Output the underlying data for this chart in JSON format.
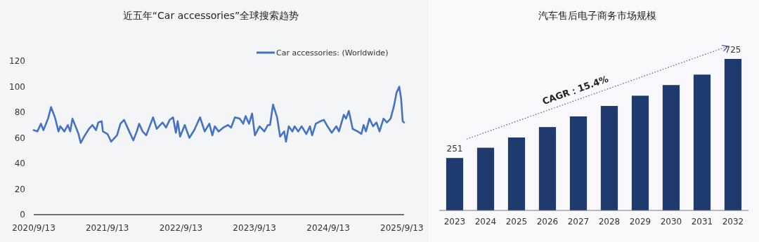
{
  "chart_data": [
    {
      "type": "line",
      "title": "近五年“Car accessories”全球搜索趋势",
      "legend": "top",
      "xlim": [
        "2020-09-13",
        "2025-09-24"
      ],
      "ylim": [
        0,
        120
      ],
      "yticks": [
        0,
        20,
        40,
        60,
        80,
        100,
        120
      ],
      "xticks": [
        {
          "value": "2020-09-13",
          "label": "2020/9/13"
        },
        {
          "value": "2021-09-13",
          "label": "2021/9/13"
        },
        {
          "value": "2022-09-13",
          "label": "2022/9/13"
        },
        {
          "value": "2023-09-13",
          "label": "2023/9/13"
        },
        {
          "value": "2024-09-13",
          "label": "2024/9/13"
        },
        {
          "value": "2025-09-13",
          "label": "2025/9/13"
        }
      ],
      "x": [
        "2020-09-13",
        "2020-10-01",
        "2020-10-19",
        "2020-10-31",
        "2020-11-23",
        "2020-12-08",
        "2020-12-27",
        "2021-01-14",
        "2021-01-23",
        "2021-02-12",
        "2021-03-01",
        "2021-03-13",
        "2021-03-24",
        "2021-04-11",
        "2021-04-23",
        "2021-05-04",
        "2021-05-21",
        "2021-06-14",
        "2021-07-01",
        "2021-07-19",
        "2021-07-30",
        "2021-08-16",
        "2021-08-22",
        "2021-09-14",
        "2021-10-02",
        "2021-10-31",
        "2021-11-17",
        "2021-12-05",
        "2021-12-22",
        "2022-01-20",
        "2022-02-06",
        "2022-02-18",
        "2022-03-07",
        "2022-03-25",
        "2022-04-28",
        "2022-05-16",
        "2022-06-14",
        "2022-07-01",
        "2022-07-19",
        "2022-08-05",
        "2022-08-19",
        "2022-08-28",
        "2022-09-09",
        "2022-10-02",
        "2022-10-25",
        "2022-11-18",
        "2022-12-17",
        "2023-01-09",
        "2023-02-01",
        "2023-02-16",
        "2023-02-28",
        "2023-03-19",
        "2023-04-11",
        "2023-05-05",
        "2023-05-20",
        "2023-06-08",
        "2023-07-02",
        "2023-07-19",
        "2023-07-31",
        "2023-08-17",
        "2023-09-01",
        "2023-09-15",
        "2023-10-08",
        "2023-11-01",
        "2023-11-18",
        "2023-11-29",
        "2023-12-14",
        "2024-01-03",
        "2024-01-18",
        "2024-02-07",
        "2024-02-16",
        "2024-03-01",
        "2024-03-19",
        "2024-03-30",
        "2024-04-17",
        "2024-05-04",
        "2024-05-27",
        "2024-06-14",
        "2024-06-25",
        "2024-07-13",
        "2024-08-05",
        "2024-08-22",
        "2024-09-09",
        "2024-09-30",
        "2024-10-23",
        "2024-11-05",
        "2024-11-29",
        "2024-12-10",
        "2024-12-24",
        "2025-01-12",
        "2025-02-06",
        "2025-02-24",
        "2025-03-07",
        "2025-03-19",
        "2025-04-05",
        "2025-04-23",
        "2025-05-10",
        "2025-05-25",
        "2025-06-14",
        "2025-07-01",
        "2025-07-19",
        "2025-08-05",
        "2025-08-17",
        "2025-08-31",
        "2025-09-09",
        "2025-09-17",
        "2025-09-24"
      ],
      "series": [
        {
          "name": "Car accessories: (Worldwide)",
          "color": "#4472c4",
          "values": [
            66,
            65,
            71,
            66,
            75,
            84,
            76,
            65,
            69,
            65,
            70,
            65,
            75,
            68,
            63,
            56,
            61,
            67,
            70,
            66,
            72,
            73,
            65,
            63,
            57,
            62,
            71,
            74,
            68,
            58,
            65,
            71,
            65,
            62,
            76,
            67,
            72,
            68,
            74,
            76,
            64,
            73,
            61,
            70,
            60,
            66,
            76,
            65,
            71,
            62,
            69,
            65,
            68,
            70,
            68,
            76,
            75,
            71,
            77,
            71,
            79,
            62,
            69,
            65,
            70,
            70,
            86,
            76,
            61,
            65,
            57,
            69,
            65,
            69,
            65,
            69,
            63,
            69,
            62,
            71,
            73,
            74,
            69,
            64,
            69,
            65,
            78,
            75,
            81,
            67,
            65,
            63,
            70,
            65,
            75,
            69,
            72,
            65,
            75,
            72,
            75,
            85,
            95,
            100,
            91,
            73,
            72
          ]
        }
      ]
    },
    {
      "type": "bar",
      "title": "汽车售后电子商务市场规模",
      "tick_labels": "x",
      "color": "#1f3a6e",
      "categories": [
        "2023",
        "2024",
        "2025",
        "2026",
        "2027",
        "2028",
        "2029",
        "2030",
        "2031",
        "2032"
      ],
      "values": [
        251,
        300,
        349,
        399,
        450,
        500,
        549,
        600,
        650,
        725
      ],
      "value_labels": [
        "251",
        null,
        null,
        null,
        null,
        null,
        null,
        null,
        null,
        "725"
      ],
      "annotations": [
        "CAGR：15.4%"
      ]
    }
  ]
}
